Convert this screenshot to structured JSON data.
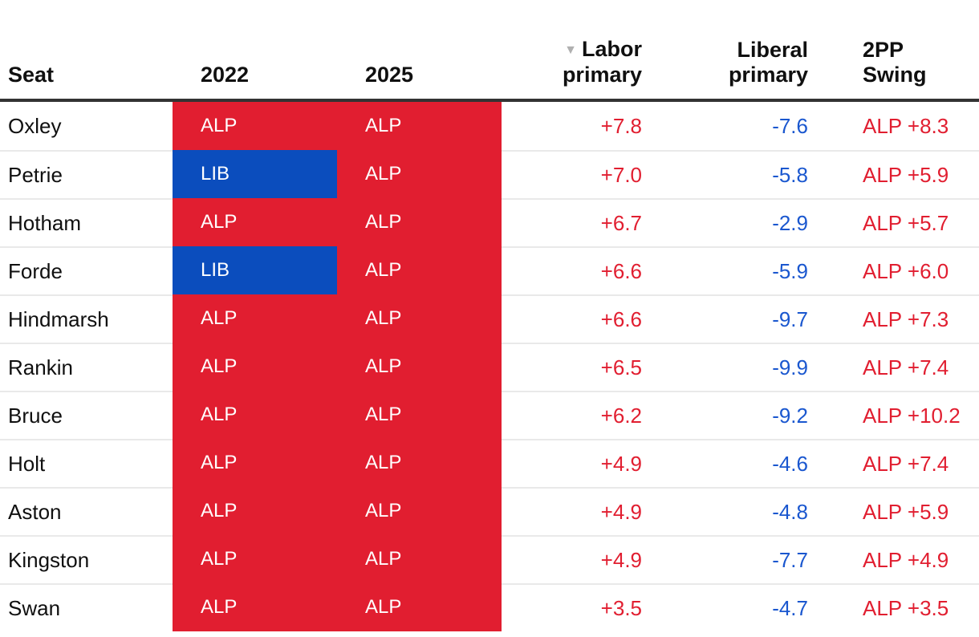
{
  "colors": {
    "alp_red": "#e11e30",
    "lib_blue": "#0b4dbd",
    "labor_value_red": "#e11e30",
    "liberal_value_blue": "#1a57cf",
    "swing_value_red": "#e11e30",
    "header_rule_dark": "#333333",
    "row_separator": "#e9e9e9",
    "text_dark": "#101010",
    "sort_icon_gray": "#b0b0b0"
  },
  "table": {
    "headers": {
      "seat": "Seat",
      "y2022": "2022",
      "y2025": "2025",
      "labor_line1": "Labor",
      "labor_line2": "primary",
      "liberal_line1": "Liberal",
      "liberal_line2": "primary",
      "swing_line1": "2PP",
      "swing_line2": "Swing"
    },
    "sort": {
      "column": "Labor primary",
      "direction": "descending",
      "icon": "▼"
    },
    "rows": [
      {
        "seat": "Oxley",
        "y2022": "ALP",
        "y2025": "ALP",
        "labor": "+7.8",
        "liberal": "-7.6",
        "swing": "ALP +8.3"
      },
      {
        "seat": "Petrie",
        "y2022": "LIB",
        "y2025": "ALP",
        "labor": "+7.0",
        "liberal": "-5.8",
        "swing": "ALP +5.9"
      },
      {
        "seat": "Hotham",
        "y2022": "ALP",
        "y2025": "ALP",
        "labor": "+6.7",
        "liberal": "-2.9",
        "swing": "ALP +5.7"
      },
      {
        "seat": "Forde",
        "y2022": "LIB",
        "y2025": "ALP",
        "labor": "+6.6",
        "liberal": "-5.9",
        "swing": "ALP +6.0"
      },
      {
        "seat": "Hindmarsh",
        "y2022": "ALP",
        "y2025": "ALP",
        "labor": "+6.6",
        "liberal": "-9.7",
        "swing": "ALP +7.3"
      },
      {
        "seat": "Rankin",
        "y2022": "ALP",
        "y2025": "ALP",
        "labor": "+6.5",
        "liberal": "-9.9",
        "swing": "ALP +7.4"
      },
      {
        "seat": "Bruce",
        "y2022": "ALP",
        "y2025": "ALP",
        "labor": "+6.2",
        "liberal": "-9.2",
        "swing": "ALP +10.2"
      },
      {
        "seat": "Holt",
        "y2022": "ALP",
        "y2025": "ALP",
        "labor": "+4.9",
        "liberal": "-4.6",
        "swing": "ALP +7.4"
      },
      {
        "seat": "Aston",
        "y2022": "ALP",
        "y2025": "ALP",
        "labor": "+4.9",
        "liberal": "-4.8",
        "swing": "ALP +5.9"
      },
      {
        "seat": "Kingston",
        "y2022": "ALP",
        "y2025": "ALP",
        "labor": "+4.9",
        "liberal": "-7.7",
        "swing": "ALP +4.9"
      },
      {
        "seat": "Swan",
        "y2022": "ALP",
        "y2025": "ALP",
        "labor": "+3.5",
        "liberal": "-4.7",
        "swing": "ALP +3.5"
      }
    ]
  },
  "chart_data": {
    "type": "table",
    "columns": [
      "Seat",
      "2022",
      "2025",
      "Labor primary",
      "Liberal primary",
      "2PP Swing"
    ],
    "sorted_by": {
      "column": "Labor primary",
      "direction": "descending"
    },
    "rows": [
      {
        "seat": "Oxley",
        "winner_2022": "ALP",
        "winner_2025": "ALP",
        "labor_primary_swing": 7.8,
        "liberal_primary_swing": -7.6,
        "tpp_swing_party": "ALP",
        "tpp_swing": 8.3
      },
      {
        "seat": "Petrie",
        "winner_2022": "LIB",
        "winner_2025": "ALP",
        "labor_primary_swing": 7.0,
        "liberal_primary_swing": -5.8,
        "tpp_swing_party": "ALP",
        "tpp_swing": 5.9
      },
      {
        "seat": "Hotham",
        "winner_2022": "ALP",
        "winner_2025": "ALP",
        "labor_primary_swing": 6.7,
        "liberal_primary_swing": -2.9,
        "tpp_swing_party": "ALP",
        "tpp_swing": 5.7
      },
      {
        "seat": "Forde",
        "winner_2022": "LIB",
        "winner_2025": "ALP",
        "labor_primary_swing": 6.6,
        "liberal_primary_swing": -5.9,
        "tpp_swing_party": "ALP",
        "tpp_swing": 6.0
      },
      {
        "seat": "Hindmarsh",
        "winner_2022": "ALP",
        "winner_2025": "ALP",
        "labor_primary_swing": 6.6,
        "liberal_primary_swing": -9.7,
        "tpp_swing_party": "ALP",
        "tpp_swing": 7.3
      },
      {
        "seat": "Rankin",
        "winner_2022": "ALP",
        "winner_2025": "ALP",
        "labor_primary_swing": 6.5,
        "liberal_primary_swing": -9.9,
        "tpp_swing_party": "ALP",
        "tpp_swing": 7.4
      },
      {
        "seat": "Bruce",
        "winner_2022": "ALP",
        "winner_2025": "ALP",
        "labor_primary_swing": 6.2,
        "liberal_primary_swing": -9.2,
        "tpp_swing_party": "ALP",
        "tpp_swing": 10.2
      },
      {
        "seat": "Holt",
        "winner_2022": "ALP",
        "winner_2025": "ALP",
        "labor_primary_swing": 4.9,
        "liberal_primary_swing": -4.6,
        "tpp_swing_party": "ALP",
        "tpp_swing": 7.4
      },
      {
        "seat": "Aston",
        "winner_2022": "ALP",
        "winner_2025": "ALP",
        "labor_primary_swing": 4.9,
        "liberal_primary_swing": -4.8,
        "tpp_swing_party": "ALP",
        "tpp_swing": 5.9
      },
      {
        "seat": "Kingston",
        "winner_2022": "ALP",
        "winner_2025": "ALP",
        "labor_primary_swing": 4.9,
        "liberal_primary_swing": -7.7,
        "tpp_swing_party": "ALP",
        "tpp_swing": 4.9
      },
      {
        "seat": "Swan",
        "winner_2022": "ALP",
        "winner_2025": "ALP",
        "labor_primary_swing": 3.5,
        "liberal_primary_swing": -4.7,
        "tpp_swing_party": "ALP",
        "tpp_swing": 3.5
      }
    ]
  }
}
